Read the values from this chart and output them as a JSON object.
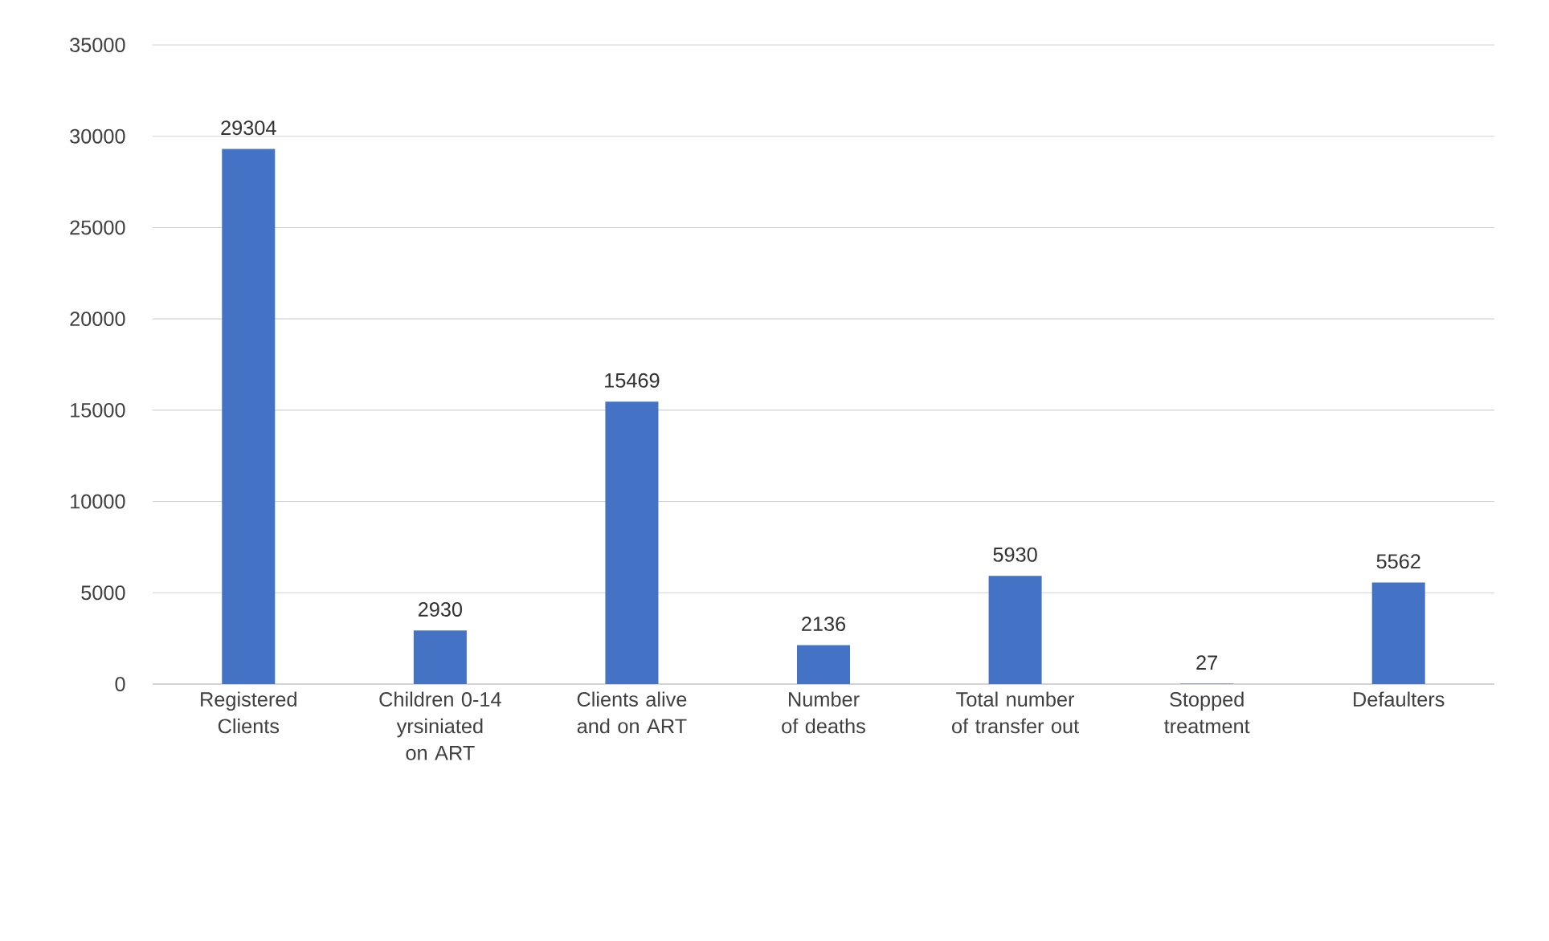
{
  "chart_data": {
    "type": "bar",
    "categories": [
      "Registered Clients",
      "Children 0-14 yrsiniated on ART",
      "Clients alive and on ART",
      "Number of deaths",
      "Total number of transfer out",
      "Stopped treatment",
      "Defaulters"
    ],
    "values": [
      29304,
      2930,
      15469,
      2136,
      5930,
      27,
      5562
    ],
    "color": "#4472c4",
    "data_labels": true,
    "grid": "y",
    "ylim": [
      0,
      35000
    ],
    "yticks": [
      0,
      5000,
      10000,
      15000,
      20000,
      25000,
      30000,
      35000
    ]
  }
}
